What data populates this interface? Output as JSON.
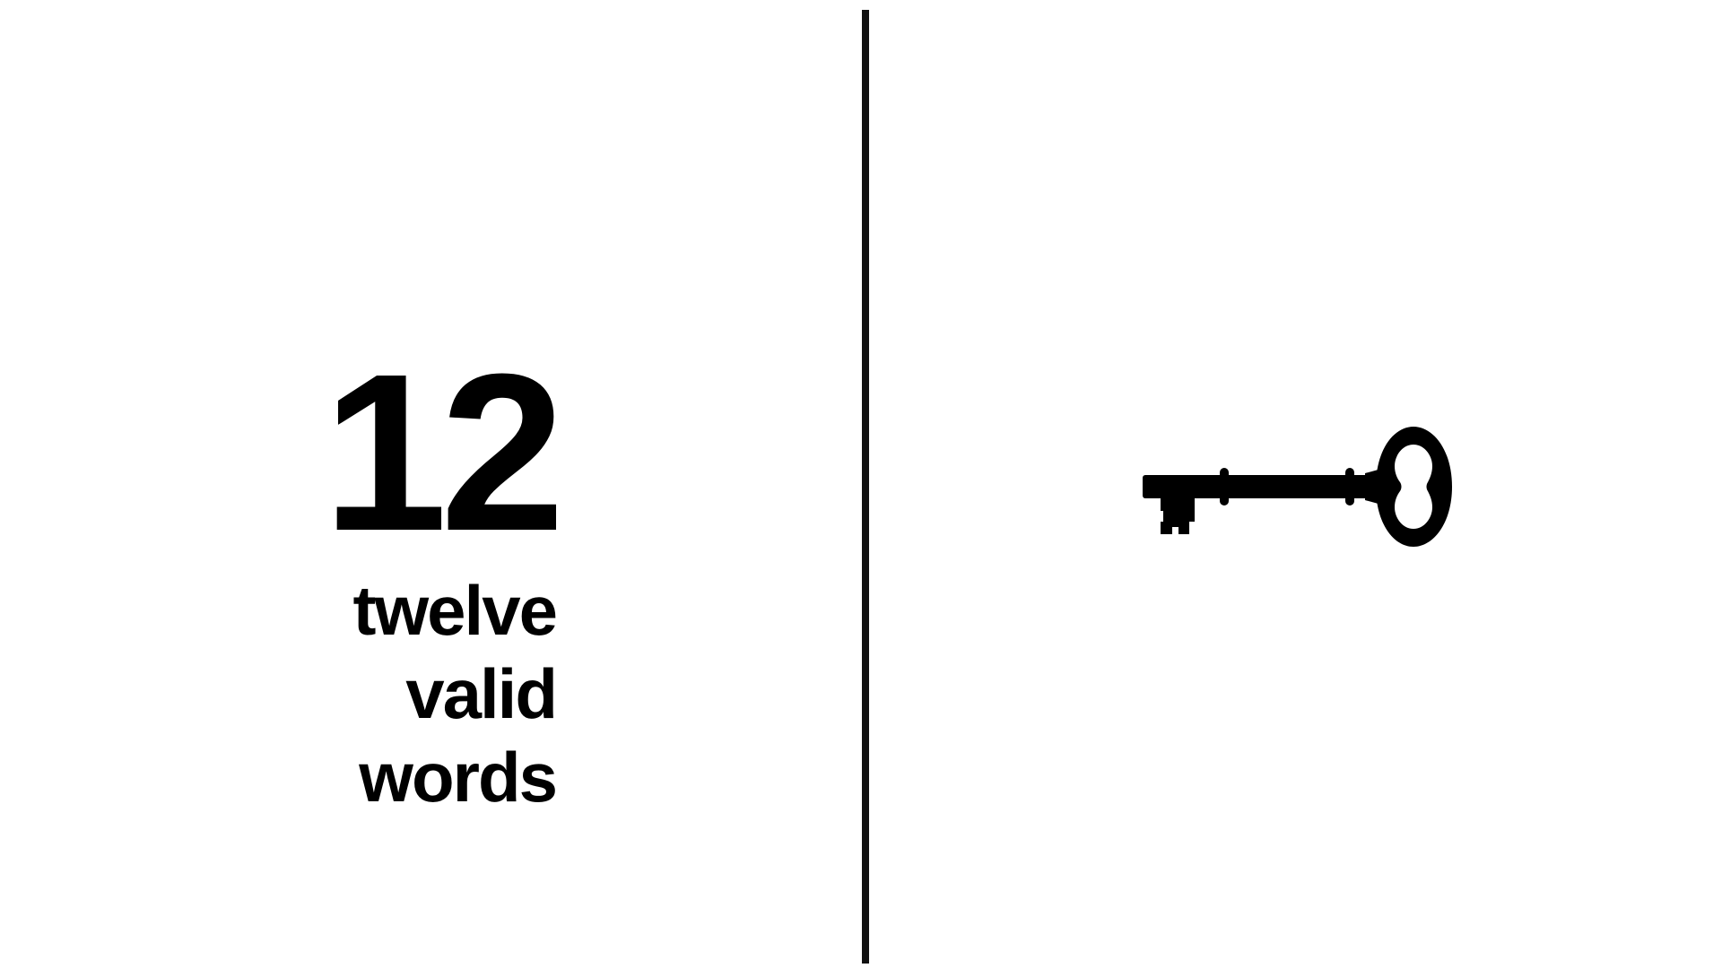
{
  "slide": {
    "number": "12",
    "lines": [
      "twelve",
      "valid",
      "words"
    ]
  },
  "icons": {
    "right": "key-icon"
  },
  "colors": {
    "background": "#ffffff",
    "foreground": "#000000",
    "divider": "#111111"
  }
}
